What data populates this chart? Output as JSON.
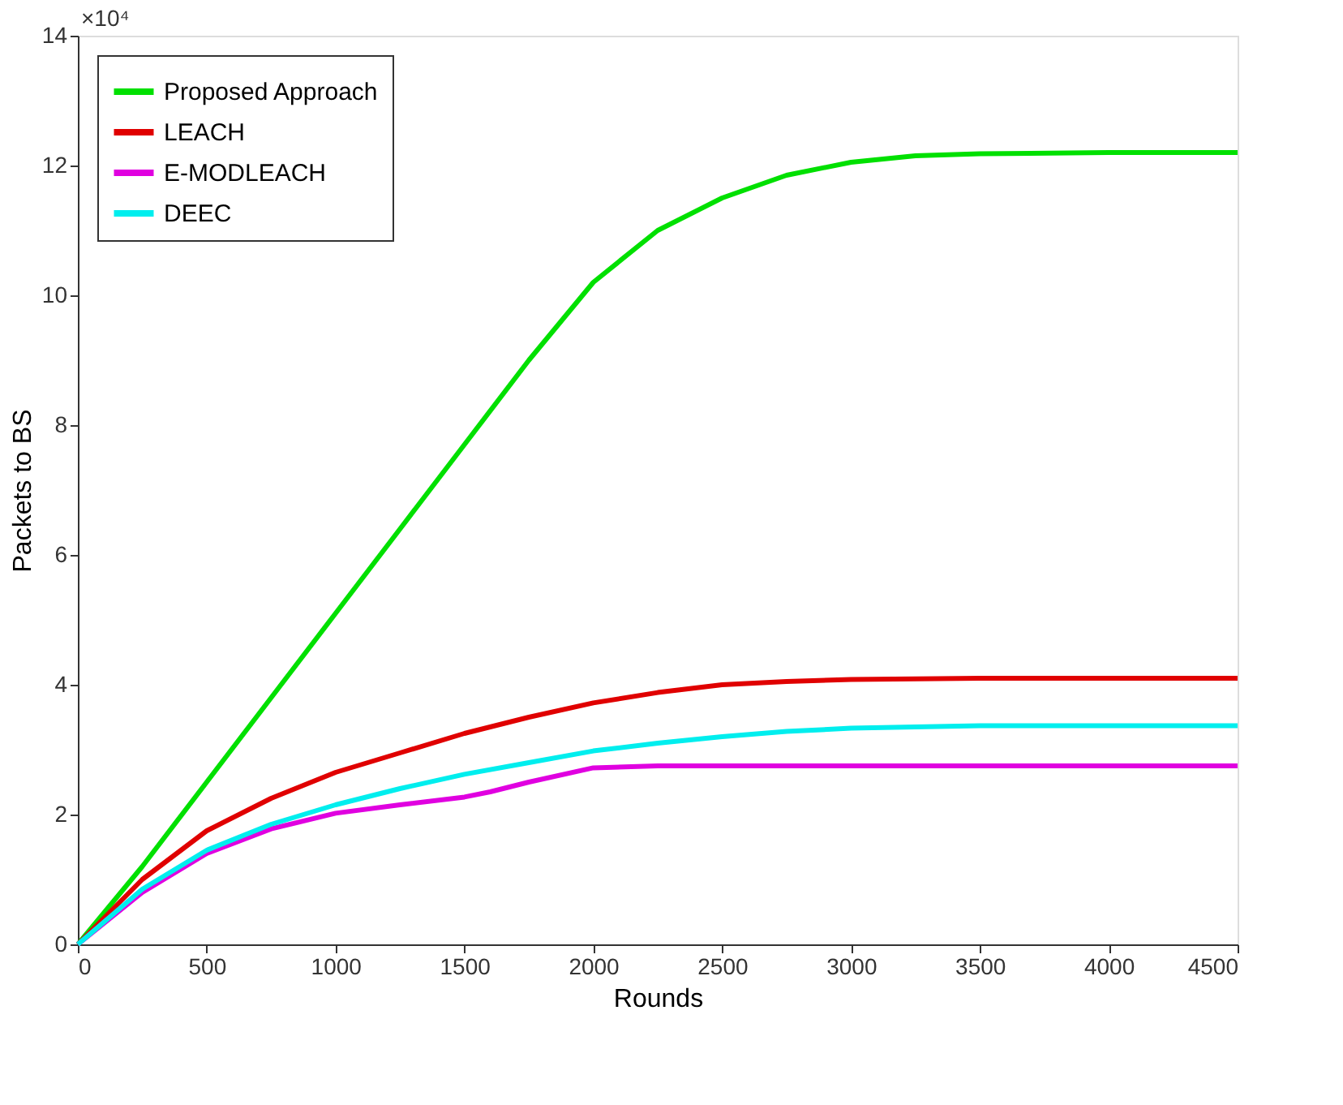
{
  "chart_data": {
    "type": "line",
    "xlabel": "Rounds",
    "ylabel": "Packets to BS",
    "annotations": [
      "×10⁴"
    ],
    "xlim": [
      0,
      4500
    ],
    "xticks": [
      0,
      500,
      1000,
      1500,
      2000,
      2500,
      3000,
      3500,
      4000,
      4500
    ],
    "ylim": [
      0,
      14
    ],
    "yticks": [
      0,
      2,
      4,
      6,
      8,
      10,
      12,
      14
    ],
    "grid": false,
    "legend": "top left",
    "marker": "none",
    "line_style": "solid",
    "series": [
      {
        "name": "Proposed Approach",
        "color": "#00e000",
        "x": [
          0,
          250,
          500,
          750,
          1000,
          1250,
          1500,
          1750,
          2000,
          2250,
          2500,
          2750,
          3000,
          3250,
          3500,
          4000,
          4500
        ],
        "values": [
          0,
          1.2,
          2.5,
          3.8,
          5.1,
          6.4,
          7.7,
          9.0,
          10.2,
          11.0,
          11.5,
          11.85,
          12.05,
          12.15,
          12.18,
          12.2,
          12.2
        ]
      },
      {
        "name": "LEACH",
        "color": "#e00000",
        "x": [
          0,
          250,
          500,
          750,
          1000,
          1250,
          1500,
          1750,
          2000,
          2250,
          2500,
          2750,
          3000,
          3500,
          4500
        ],
        "values": [
          0,
          1.0,
          1.75,
          2.25,
          2.65,
          2.95,
          3.25,
          3.5,
          3.72,
          3.88,
          4.0,
          4.05,
          4.08,
          4.1,
          4.1
        ]
      },
      {
        "name": "E-MODLEACH",
        "color": "#e000e0",
        "x": [
          0,
          250,
          500,
          750,
          1000,
          1250,
          1500,
          1600,
          1750,
          2000,
          2250,
          4500
        ],
        "values": [
          0,
          0.8,
          1.4,
          1.78,
          2.02,
          2.15,
          2.27,
          2.35,
          2.5,
          2.72,
          2.75,
          2.75
        ]
      },
      {
        "name": "DEEC",
        "color": "#00eeee",
        "x": [
          0,
          250,
          500,
          750,
          1000,
          1250,
          1500,
          1750,
          2000,
          2250,
          2500,
          2750,
          3000,
          3500,
          4500
        ],
        "values": [
          0,
          0.85,
          1.45,
          1.85,
          2.15,
          2.4,
          2.62,
          2.8,
          2.98,
          3.1,
          3.2,
          3.28,
          3.33,
          3.37,
          3.37
        ]
      }
    ]
  }
}
